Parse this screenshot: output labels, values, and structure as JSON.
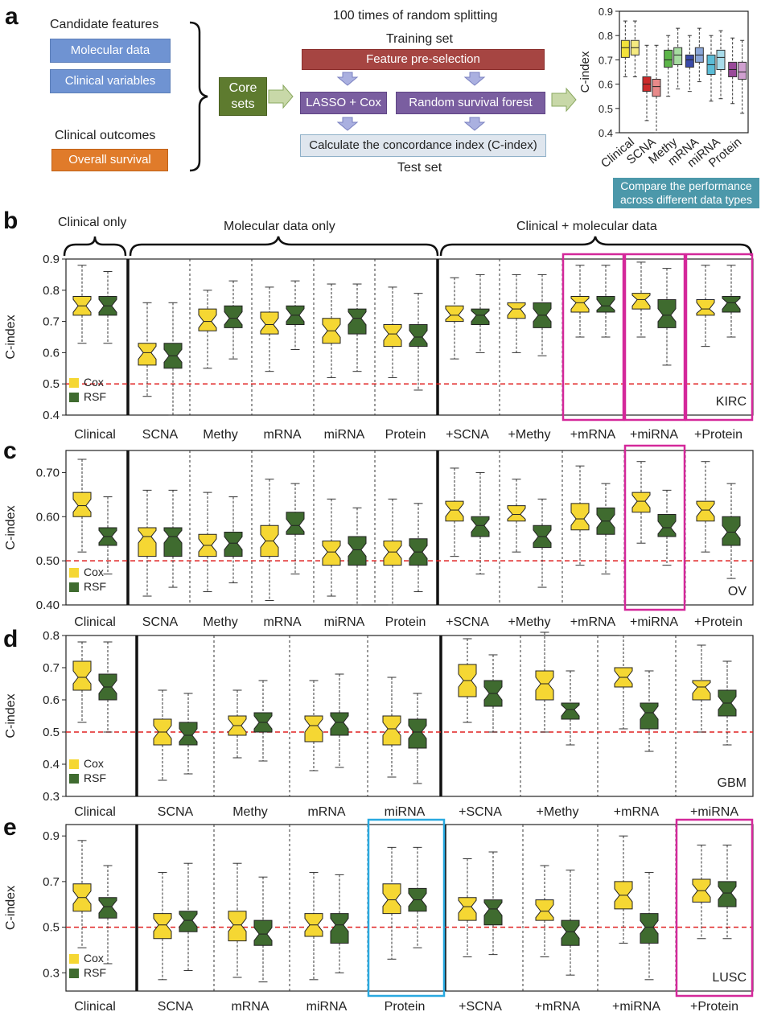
{
  "panel_a": {
    "letter": "a",
    "candidate_features_label": "Candidate features",
    "molecular_data": "Molecular data",
    "clinical_variables": "Clinical variables",
    "clinical_outcomes_label": "Clinical outcomes",
    "overall_survival": "Overall survival",
    "core_sets": "Core sets",
    "splitting_title": "100 times of random splitting",
    "training_set": "Training set",
    "feature_preselection": "Feature pre-selection",
    "lasso_cox": "LASSO + Cox",
    "rsf": "Random survival forest",
    "calc_cindex": "Calculate the concordance index (C-index)",
    "test_set": "Test set",
    "compare_note": "Compare the performance across different data types",
    "colors": {
      "blue_box": "#6f93d2",
      "orange_box": "#e07b2a",
      "green_box": "#5e7b2f",
      "red_box": "#a64542",
      "purple_box": "#7a5ea0",
      "grey_box": "#dfe6ee",
      "teal_note": "#4c98aa",
      "arrow": "#c8d8a8"
    }
  },
  "panel_b_header": {
    "clinical_only": "Clinical only",
    "molecular_only": "Molecular data only",
    "clinical_molecular": "Clinical + molecular data"
  },
  "chart_data": [
    {
      "panel": "a-inset",
      "type": "box",
      "ylabel": "C-index",
      "ylim": [
        0.4,
        0.9
      ],
      "yticks": [
        "0.4",
        "0.5",
        "0.6",
        "0.7",
        "0.8",
        "0.9"
      ],
      "categories": [
        "Clinical",
        "SCNA",
        "Methy",
        "mRNA",
        "miRNA",
        "Protein"
      ],
      "colors": [
        [
          "#f2e13a",
          "#f5ea80"
        ],
        [
          "#cc2a2a",
          "#e88a8a"
        ],
        [
          "#5cb548",
          "#a6dba0"
        ],
        [
          "#3a4aa8",
          "#8aa6d8"
        ],
        [
          "#5bbcd6",
          "#a8dcea"
        ],
        [
          "#9a4a9a",
          "#d0a0d0"
        ]
      ],
      "series": [
        {
          "name": "",
          "boxes": [
            [
              0.63,
              0.71,
              0.75,
              0.78,
              0.86
            ],
            [
              0.45,
              0.57,
              0.6,
              0.63,
              0.76
            ],
            [
              0.55,
              0.67,
              0.7,
              0.74,
              0.8
            ],
            [
              0.57,
              0.67,
              0.7,
              0.72,
              0.8
            ],
            [
              0.53,
              0.64,
              0.68,
              0.72,
              0.8
            ],
            [
              0.52,
              0.63,
              0.66,
              0.69,
              0.79
            ]
          ]
        },
        {
          "name": "",
          "boxes": [
            [
              0.63,
              0.72,
              0.75,
              0.78,
              0.86
            ],
            [
              0.4,
              0.55,
              0.59,
              0.62,
              0.76
            ],
            [
              0.58,
              0.68,
              0.72,
              0.75,
              0.83
            ],
            [
              0.61,
              0.69,
              0.72,
              0.75,
              0.83
            ],
            [
              0.54,
              0.66,
              0.71,
              0.74,
              0.82
            ],
            [
              0.48,
              0.62,
              0.65,
              0.69,
              0.78
            ]
          ]
        }
      ]
    },
    {
      "panel": "b",
      "letter": "b",
      "type": "box",
      "ylabel": "C-index",
      "ylim": [
        0.4,
        0.9
      ],
      "yticks": [
        "0.4",
        "0.5",
        "0.6",
        "0.7",
        "0.8",
        "0.9"
      ],
      "categories": [
        "Clinical",
        "SCNA",
        "Methy",
        "mRNA",
        "miRNA",
        "Protein",
        "+SCNA",
        "+Methy",
        "+mRNA",
        "+miRNA",
        "+Protein"
      ],
      "tag": "KIRC",
      "legend": [
        "Cox",
        "RSF"
      ],
      "series": [
        {
          "name": "Cox",
          "boxes": [
            [
              0.63,
              0.72,
              0.75,
              0.78,
              0.88
            ],
            [
              0.46,
              0.56,
              0.6,
              0.63,
              0.76
            ],
            [
              0.55,
              0.67,
              0.7,
              0.74,
              0.8
            ],
            [
              0.54,
              0.66,
              0.69,
              0.73,
              0.81
            ],
            [
              0.52,
              0.63,
              0.67,
              0.71,
              0.82
            ],
            [
              0.52,
              0.62,
              0.66,
              0.69,
              0.81
            ],
            [
              0.58,
              0.7,
              0.72,
              0.75,
              0.84
            ],
            [
              0.6,
              0.71,
              0.74,
              0.76,
              0.85
            ],
            [
              0.65,
              0.73,
              0.76,
              0.78,
              0.88
            ],
            [
              0.65,
              0.74,
              0.77,
              0.79,
              0.89
            ],
            [
              0.62,
              0.72,
              0.74,
              0.77,
              0.88
            ]
          ]
        },
        {
          "name": "RSF",
          "boxes": [
            [
              0.63,
              0.72,
              0.75,
              0.78,
              0.86
            ],
            [
              0.4,
              0.55,
              0.59,
              0.63,
              0.76
            ],
            [
              0.58,
              0.68,
              0.71,
              0.75,
              0.83
            ],
            [
              0.61,
              0.69,
              0.72,
              0.75,
              0.83
            ],
            [
              0.54,
              0.66,
              0.71,
              0.74,
              0.82
            ],
            [
              0.48,
              0.62,
              0.65,
              0.69,
              0.79
            ],
            [
              0.6,
              0.69,
              0.72,
              0.74,
              0.85
            ],
            [
              0.59,
              0.68,
              0.72,
              0.76,
              0.85
            ],
            [
              0.65,
              0.73,
              0.75,
              0.78,
              0.88
            ],
            [
              0.56,
              0.68,
              0.72,
              0.77,
              0.87
            ],
            [
              0.65,
              0.73,
              0.76,
              0.78,
              0.88
            ]
          ]
        }
      ],
      "highlights": [
        {
          "range": [
            8,
            8
          ],
          "color": "#d4289a"
        },
        {
          "range": [
            9,
            9
          ],
          "color": "#d4289a"
        },
        {
          "range": [
            10,
            10
          ],
          "color": "#d4289a"
        }
      ],
      "separators_solid": [
        1,
        6
      ]
    },
    {
      "panel": "c",
      "letter": "c",
      "type": "box",
      "ylabel": "C-index",
      "ylim": [
        0.4,
        0.75
      ],
      "yticks": [
        "0.40",
        "0.50",
        "0.60",
        "0.70"
      ],
      "ytick_values": [
        0.4,
        0.5,
        0.6,
        0.7
      ],
      "categories": [
        "Clinical",
        "SCNA",
        "Methy",
        "mRNA",
        "miRNA",
        "Protein",
        "+SCNA",
        "+Methy",
        "+mRNA",
        "+miRNA",
        "+Protein"
      ],
      "tag": "OV",
      "legend": [
        "Cox",
        "RSF"
      ],
      "series": [
        {
          "name": "Cox",
          "boxes": [
            [
              0.52,
              0.6,
              0.625,
              0.655,
              0.73
            ],
            [
              0.42,
              0.51,
              0.555,
              0.575,
              0.66
            ],
            [
              0.43,
              0.51,
              0.535,
              0.56,
              0.655
            ],
            [
              0.41,
              0.51,
              0.545,
              0.58,
              0.685
            ],
            [
              0.42,
              0.49,
              0.52,
              0.545,
              0.64
            ],
            [
              0.4,
              0.49,
              0.52,
              0.545,
              0.64
            ],
            [
              0.51,
              0.59,
              0.615,
              0.635,
              0.71
            ],
            [
              0.52,
              0.59,
              0.605,
              0.625,
              0.685
            ],
            [
              0.49,
              0.57,
              0.595,
              0.63,
              0.715
            ],
            [
              0.54,
              0.61,
              0.635,
              0.655,
              0.725
            ],
            [
              0.52,
              0.59,
              0.615,
              0.635,
              0.725
            ]
          ]
        },
        {
          "name": "RSF",
          "boxes": [
            [
              0.47,
              0.535,
              0.555,
              0.575,
              0.645
            ],
            [
              0.44,
              0.51,
              0.555,
              0.575,
              0.66
            ],
            [
              0.45,
              0.51,
              0.54,
              0.565,
              0.645
            ],
            [
              0.47,
              0.56,
              0.58,
              0.61,
              0.675
            ],
            [
              0.4,
              0.49,
              0.525,
              0.555,
              0.62
            ],
            [
              0.43,
              0.49,
              0.52,
              0.55,
              0.63
            ],
            [
              0.47,
              0.555,
              0.58,
              0.6,
              0.7
            ],
            [
              0.44,
              0.53,
              0.555,
              0.58,
              0.64
            ],
            [
              0.47,
              0.56,
              0.59,
              0.62,
              0.675
            ],
            [
              0.49,
              0.555,
              0.575,
              0.605,
              0.66
            ],
            [
              0.46,
              0.535,
              0.565,
              0.6,
              0.675
            ]
          ]
        }
      ],
      "highlights": [
        {
          "range": [
            9,
            9
          ],
          "color": "#d4289a"
        }
      ],
      "separators_solid": [
        1,
        6
      ]
    },
    {
      "panel": "d",
      "letter": "d",
      "type": "box",
      "ylabel": "C-index",
      "ylim": [
        0.3,
        0.8
      ],
      "yticks": [
        "0.3",
        "0.4",
        "0.5",
        "0.6",
        "0.7",
        "0.8"
      ],
      "categories": [
        "Clinical",
        "SCNA",
        "Methy",
        "mRNA",
        "miRNA",
        "+SCNA",
        "+Methy",
        "+mRNA",
        "+miRNA"
      ],
      "tag": "GBM",
      "legend": [
        "Cox",
        "RSF"
      ],
      "series": [
        {
          "name": "Cox",
          "boxes": [
            [
              0.53,
              0.63,
              0.67,
              0.72,
              0.78
            ],
            [
              0.35,
              0.46,
              0.5,
              0.54,
              0.63
            ],
            [
              0.42,
              0.49,
              0.52,
              0.55,
              0.63
            ],
            [
              0.38,
              0.47,
              0.52,
              0.55,
              0.66
            ],
            [
              0.36,
              0.46,
              0.51,
              0.55,
              0.67
            ],
            [
              0.53,
              0.61,
              0.66,
              0.71,
              0.79
            ],
            [
              0.5,
              0.6,
              0.65,
              0.69,
              0.81
            ],
            [
              0.51,
              0.64,
              0.67,
              0.7,
              0.8
            ],
            [
              0.5,
              0.6,
              0.64,
              0.66,
              0.77
            ]
          ]
        },
        {
          "name": "RSF",
          "boxes": [
            [
              0.5,
              0.6,
              0.64,
              0.68,
              0.78
            ],
            [
              0.37,
              0.46,
              0.49,
              0.53,
              0.62
            ],
            [
              0.41,
              0.5,
              0.53,
              0.56,
              0.66
            ],
            [
              0.39,
              0.49,
              0.53,
              0.56,
              0.68
            ],
            [
              0.34,
              0.45,
              0.5,
              0.54,
              0.62
            ],
            [
              0.5,
              0.58,
              0.62,
              0.66,
              0.74
            ],
            [
              0.46,
              0.54,
              0.57,
              0.59,
              0.69
            ],
            [
              0.44,
              0.51,
              0.56,
              0.59,
              0.69
            ],
            [
              0.46,
              0.55,
              0.59,
              0.63,
              0.72
            ]
          ]
        }
      ],
      "highlights": [],
      "separators_solid": [
        1,
        5
      ]
    },
    {
      "panel": "e",
      "letter": "e",
      "type": "box",
      "ylabel": "C-index",
      "ylim": [
        0.22,
        0.95
      ],
      "yticks": [
        "0.3",
        "0.5",
        "0.7",
        "0.9"
      ],
      "ytick_values": [
        0.3,
        0.5,
        0.7,
        0.9
      ],
      "categories": [
        "Clinical",
        "SCNA",
        "mRNA",
        "miRNA",
        "Protein",
        "+SCNA",
        "+mRNA",
        "+miRNA",
        "+Protein"
      ],
      "tag": "LUSC",
      "legend": [
        "Cox",
        "RSF"
      ],
      "series": [
        {
          "name": "Cox",
          "boxes": [
            [
              0.41,
              0.57,
              0.63,
              0.69,
              0.88
            ],
            [
              0.27,
              0.45,
              0.51,
              0.56,
              0.74
            ],
            [
              0.28,
              0.44,
              0.51,
              0.57,
              0.78
            ],
            [
              0.27,
              0.46,
              0.51,
              0.56,
              0.74
            ],
            [
              0.36,
              0.56,
              0.62,
              0.69,
              0.85
            ],
            [
              0.37,
              0.53,
              0.59,
              0.63,
              0.8
            ],
            [
              0.37,
              0.53,
              0.57,
              0.62,
              0.77
            ],
            [
              0.43,
              0.58,
              0.64,
              0.7,
              0.9
            ],
            [
              0.45,
              0.61,
              0.66,
              0.71,
              0.86
            ]
          ]
        },
        {
          "name": "RSF",
          "boxes": [
            [
              0.34,
              0.54,
              0.59,
              0.63,
              0.77
            ],
            [
              0.31,
              0.48,
              0.53,
              0.57,
              0.78
            ],
            [
              0.26,
              0.42,
              0.47,
              0.53,
              0.72
            ],
            [
              0.3,
              0.43,
              0.51,
              0.56,
              0.73
            ],
            [
              0.41,
              0.57,
              0.62,
              0.67,
              0.85
            ],
            [
              0.38,
              0.51,
              0.58,
              0.62,
              0.83
            ],
            [
              0.29,
              0.42,
              0.48,
              0.53,
              0.75
            ],
            [
              0.27,
              0.43,
              0.5,
              0.56,
              0.74
            ],
            [
              0.45,
              0.59,
              0.65,
              0.7,
              0.86
            ]
          ]
        }
      ],
      "highlights": [
        {
          "range": [
            4,
            4
          ],
          "color": "#29a9e0"
        },
        {
          "range": [
            8,
            8
          ],
          "color": "#d4289a"
        }
      ],
      "separators_solid": [
        1,
        5
      ]
    }
  ],
  "style": {
    "cox_color": "#f5d733",
    "rsf_color": "#3f6b2f",
    "baseline": 0.5,
    "baseline_color": "#e02020"
  }
}
